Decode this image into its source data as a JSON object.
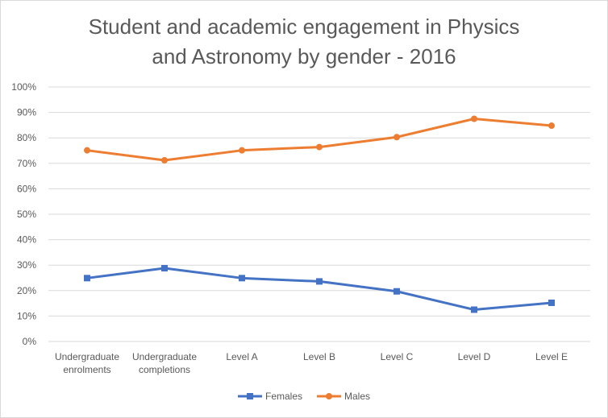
{
  "chart_data": {
    "type": "line",
    "title_lines": [
      "Student and academic engagement in Physics",
      "and Astronomy by gender - 2016"
    ],
    "categories": [
      [
        "Undergraduate",
        "enrolments"
      ],
      [
        "Undergraduate",
        "completions"
      ],
      [
        "Level A"
      ],
      [
        "Level B"
      ],
      [
        "Level C"
      ],
      [
        "Level D"
      ],
      [
        "Level E"
      ]
    ],
    "ylim": [
      0,
      100
    ],
    "yticks": [
      0,
      10,
      20,
      30,
      40,
      50,
      60,
      70,
      80,
      90,
      100
    ],
    "ytick_labels": [
      "0%",
      "10%",
      "20%",
      "30%",
      "40%",
      "50%",
      "60%",
      "70%",
      "80%",
      "90%",
      "100%"
    ],
    "grid": true,
    "legend": "bottom",
    "series": [
      {
        "name": "Females",
        "color": "#4472c4",
        "marker": "square",
        "values": [
          24.9,
          28.8,
          24.9,
          23.6,
          19.7,
          12.5,
          15.2
        ]
      },
      {
        "name": "Males",
        "color": "#ed7d31",
        "marker": "circle",
        "values": [
          75.1,
          71.2,
          75.1,
          76.4,
          80.3,
          87.5,
          84.8
        ]
      }
    ]
  }
}
